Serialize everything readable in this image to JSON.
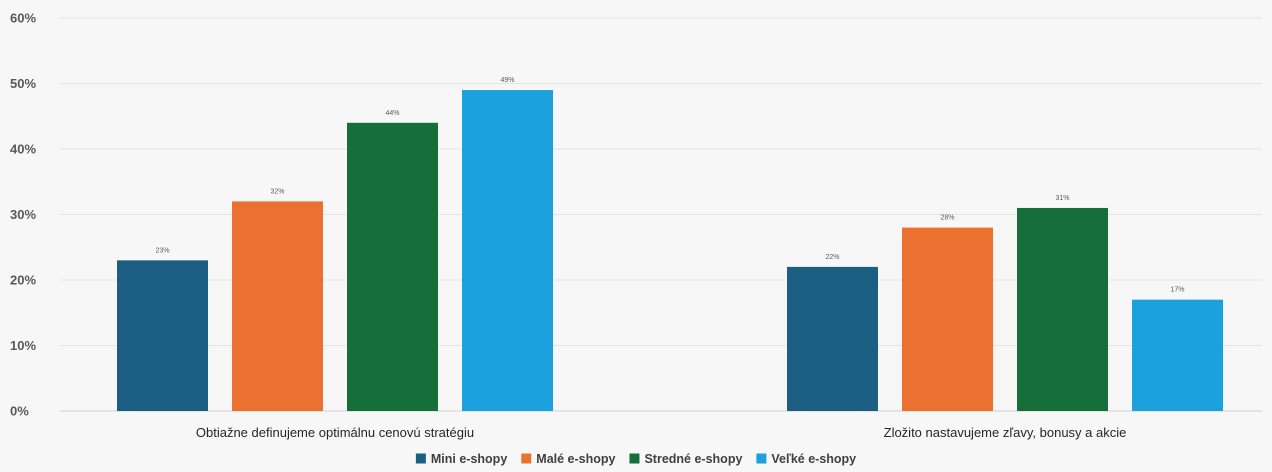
{
  "chart_data": {
    "type": "bar",
    "title": "",
    "xlabel": "",
    "ylabel": "",
    "ylim": [
      0,
      60
    ],
    "yticks": [
      0,
      10,
      20,
      30,
      40,
      50,
      60
    ],
    "ytick_suffix": "%",
    "value_suffix": "%",
    "grid": true,
    "legend_position": "bottom",
    "categories": [
      "Obtiažne definujeme optimálnu cenovú stratégiu",
      "Zložito nastavujeme zľavy, bonusy a akcie"
    ],
    "series": [
      {
        "name": "Mini e-shopy",
        "color": "#1d5f82",
        "values": [
          23,
          22
        ]
      },
      {
        "name": "Malé e-shopy",
        "color": "#ec7030",
        "values": [
          32,
          28
        ]
      },
      {
        "name": "Stredné e-shopy",
        "color": "#166f3a",
        "values": [
          44,
          31
        ]
      },
      {
        "name": "Veľké e-shopy",
        "color": "#1ba1db",
        "values": [
          49,
          17
        ]
      }
    ]
  }
}
